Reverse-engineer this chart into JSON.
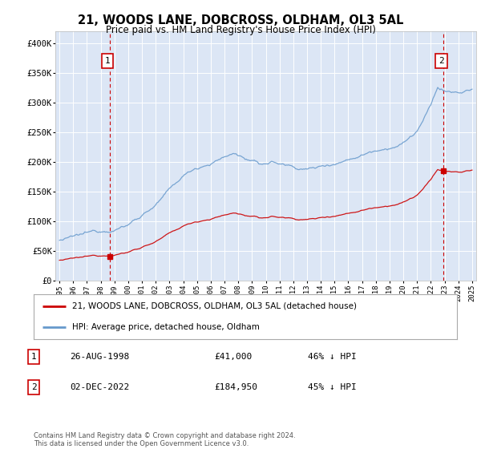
{
  "title": "21, WOODS LANE, DOBCROSS, OLDHAM, OL3 5AL",
  "subtitle": "Price paid vs. HM Land Registry's House Price Index (HPI)",
  "plot_bg_color": "#dce6f5",
  "yticks": [
    0,
    50000,
    100000,
    150000,
    200000,
    250000,
    300000,
    350000,
    400000
  ],
  "ytick_labels": [
    "£0",
    "£50K",
    "£100K",
    "£150K",
    "£200K",
    "£250K",
    "£300K",
    "£350K",
    "£400K"
  ],
  "ylim": [
    0,
    420000
  ],
  "sale1_date": 1998.65,
  "sale1_price": 41000,
  "sale2_date": 2022.92,
  "sale2_price": 184950,
  "sale_color": "#cc0000",
  "hpi_color": "#6699cc",
  "vline_color": "#cc0000",
  "legend_label1": "21, WOODS LANE, DOBCROSS, OLDHAM, OL3 5AL (detached house)",
  "legend_label2": "HPI: Average price, detached house, Oldham",
  "footer": "Contains HM Land Registry data © Crown copyright and database right 2024.\nThis data is licensed under the Open Government Licence v3.0.",
  "table_rows": [
    {
      "num": "1",
      "date": "26-AUG-1998",
      "price": "£41,000",
      "hpi": "46% ↓ HPI"
    },
    {
      "num": "2",
      "date": "02-DEC-2022",
      "price": "£184,950",
      "hpi": "45% ↓ HPI"
    }
  ]
}
